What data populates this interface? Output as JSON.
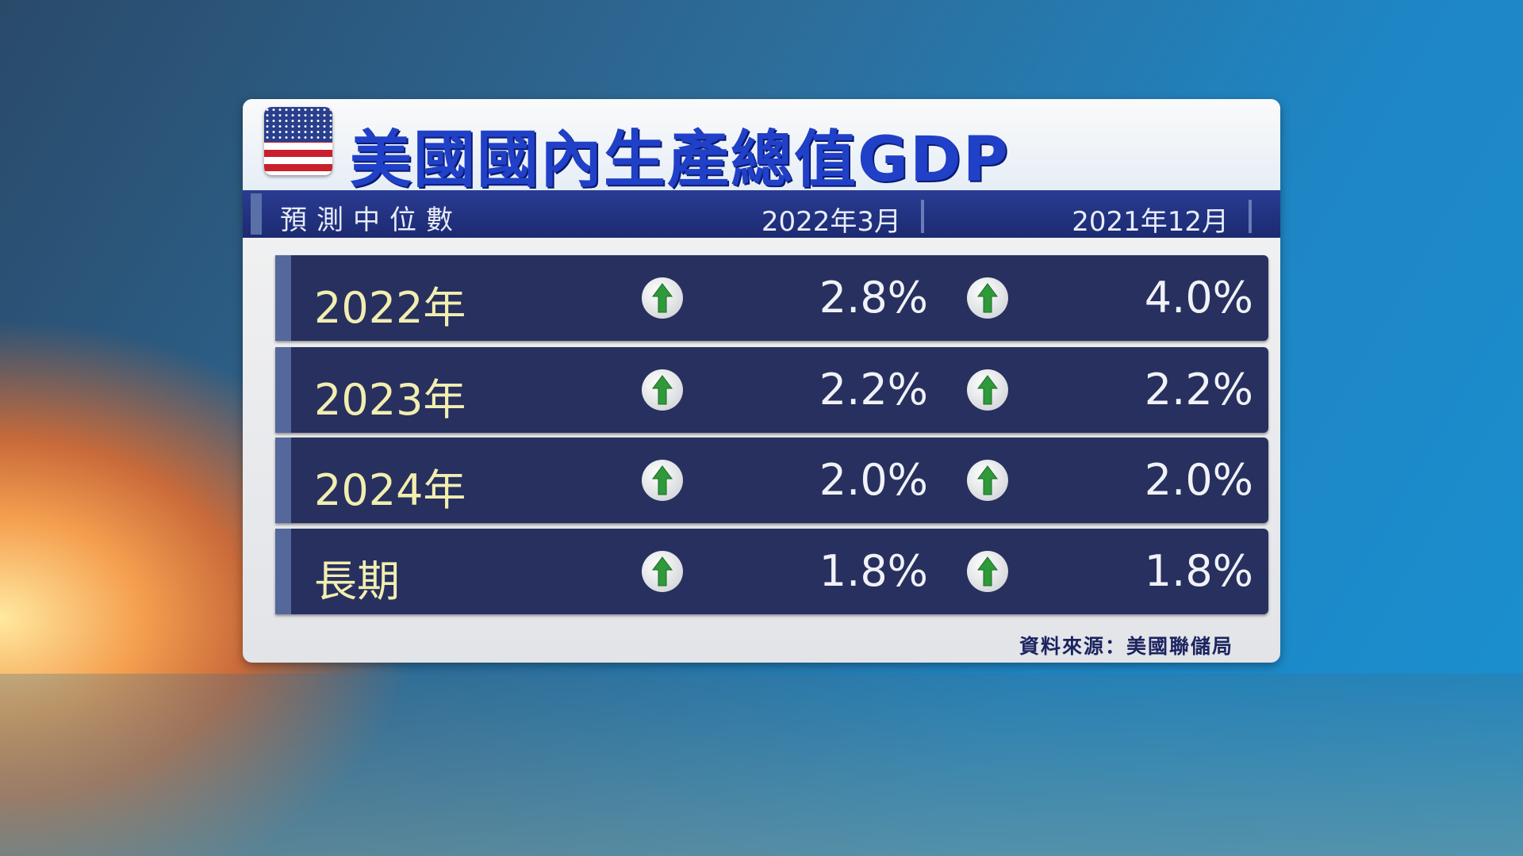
{
  "title": "美國國內生產總值GDP",
  "header": {
    "label": "預測中位數",
    "columns": [
      "2022年3月",
      "2021年12月"
    ]
  },
  "rows": [
    {
      "label": "2022年",
      "values": [
        "2.8%",
        "4.0%"
      ],
      "trend": [
        "up-arrow-icon",
        "up-arrow-icon"
      ]
    },
    {
      "label": "2023年",
      "values": [
        "2.2%",
        "2.2%"
      ],
      "trend": [
        "up-arrow-icon",
        "up-arrow-icon"
      ]
    },
    {
      "label": "2024年",
      "values": [
        "2.0%",
        "2.0%"
      ],
      "trend": [
        "up-arrow-icon",
        "up-arrow-icon"
      ]
    },
    {
      "label": "長期",
      "values": [
        "1.8%",
        "1.8%"
      ],
      "trend": [
        "up-arrow-icon",
        "up-arrow-icon"
      ]
    }
  ],
  "source": "資料來源：美國聯儲局",
  "colors": {
    "title": "#2040c8",
    "header_band": "#1c2a70",
    "row_bg": "#27305e",
    "row_label": "#f2eeb0",
    "arrow": "#2e9a3a"
  }
}
